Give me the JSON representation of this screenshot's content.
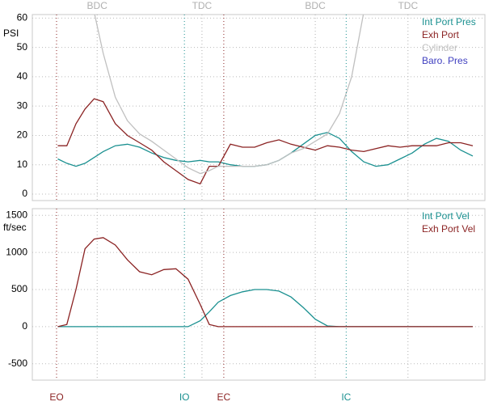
{
  "chart_data": [
    {
      "type": "line",
      "y_label": "PSI",
      "x": [
        115,
        130,
        145,
        160,
        175,
        190,
        210,
        230,
        250,
        270,
        290,
        310,
        330,
        350,
        365,
        380,
        400,
        420,
        440,
        460,
        480,
        500,
        520,
        540,
        560,
        580,
        600,
        620,
        640,
        660,
        680,
        700,
        720,
        740,
        760,
        780,
        800
      ],
      "xlim": [
        73,
        820
      ],
      "ylim": [
        -2.2,
        61.2
      ],
      "yticks": [
        0,
        10,
        20,
        30,
        40,
        50,
        60
      ],
      "grid": true,
      "markers": [
        {
          "x": 180,
          "label": "BDC",
          "color": "#b0b0b0"
        },
        {
          "x": 353,
          "label": "TDC",
          "color": "#b0b0b0"
        },
        {
          "x": 540,
          "label": "BDC",
          "color": "#b0b0b0"
        },
        {
          "x": 693,
          "label": "TDC",
          "color": "#b0b0b0"
        }
      ],
      "series": [
        {
          "name": "Int Port Pres",
          "color": "#1a9090",
          "values": [
            12,
            10.5,
            9.5,
            10.5,
            12.5,
            14.5,
            16.5,
            17,
            16,
            14,
            12.5,
            11.5,
            11,
            11.5,
            11,
            11,
            10,
            9.5,
            9.5,
            10,
            11.5,
            14,
            17,
            20,
            21,
            19,
            14.5,
            11,
            9.5,
            10,
            12,
            14,
            17,
            19,
            18,
            15,
            13
          ]
        },
        {
          "name": "Exh Port",
          "color": "#8b2323",
          "values": [
            16.5,
            16.5,
            24,
            29,
            32.5,
            31.5,
            24,
            20,
            17.5,
            15,
            11,
            8,
            5,
            3.5,
            9.5,
            9.5,
            17,
            16,
            16,
            17.5,
            18.5,
            17,
            16,
            15,
            16.5,
            16,
            15,
            14.5,
            15.5,
            16.5,
            16,
            16.5,
            16.5,
            16.5,
            17.5,
            17.5,
            16.5
          ]
        },
        {
          "name": "Cylinder",
          "color": "#c0c0c0",
          "values": [
            null,
            null,
            null,
            null,
            62,
            48,
            33,
            25,
            20.5,
            18,
            15,
            12,
            9,
            7,
            8,
            9.5,
            9.5,
            9.5,
            9.5,
            10,
            11.5,
            14,
            15.5,
            18,
            20.5,
            27.5,
            40,
            62,
            null,
            null,
            null,
            null,
            null,
            null,
            null,
            null,
            null
          ]
        },
        {
          "name": "Baro. Pres",
          "color": "#4040c0",
          "values": [
            null,
            null,
            null,
            null,
            null,
            null,
            null,
            null,
            null,
            null,
            null,
            null,
            null,
            null,
            null,
            null,
            null,
            null,
            null,
            null,
            null,
            null,
            null,
            null,
            null,
            null,
            null,
            null,
            null,
            null,
            null,
            null,
            null,
            null,
            null,
            null,
            null
          ]
        }
      ]
    },
    {
      "type": "line",
      "y_label": "ft/sec",
      "x": [
        115,
        130,
        145,
        160,
        175,
        190,
        210,
        230,
        250,
        270,
        290,
        310,
        330,
        350,
        365,
        380,
        400,
        420,
        440,
        460,
        480,
        500,
        520,
        540,
        560,
        580,
        600,
        620,
        640,
        660,
        680,
        700,
        720,
        740,
        760,
        780,
        800
      ],
      "xlim": [
        73,
        820
      ],
      "ylim": [
        -720,
        1590
      ],
      "yticks": [
        -500,
        0,
        500,
        1000,
        1500
      ],
      "grid": true,
      "markers": [
        {
          "x": 113,
          "label": "EO",
          "color": "#8b2323"
        },
        {
          "x": 324,
          "label": "IO",
          "color": "#1a9090"
        },
        {
          "x": 389,
          "label": "EC",
          "color": "#8b2323"
        },
        {
          "x": 591,
          "label": "IC",
          "color": "#1a9090"
        }
      ],
      "series": [
        {
          "name": "Int Port Vel",
          "color": "#1a9090",
          "values": [
            0,
            0,
            0,
            0,
            0,
            0,
            0,
            0,
            0,
            0,
            0,
            0,
            0,
            80,
            200,
            330,
            420,
            470,
            500,
            500,
            480,
            400,
            260,
            100,
            10,
            0,
            0,
            0,
            0,
            0,
            0,
            0,
            0,
            0,
            0,
            0,
            0
          ]
        },
        {
          "name": "Exh Port Vel",
          "color": "#8b2323",
          "values": [
            0,
            30,
            500,
            1050,
            1180,
            1200,
            1100,
            900,
            740,
            700,
            770,
            780,
            640,
            300,
            30,
            0,
            0,
            0,
            0,
            0,
            0,
            0,
            0,
            0,
            0,
            0,
            0,
            0,
            0,
            0,
            0,
            0,
            0,
            0,
            0,
            0,
            0
          ]
        }
      ]
    }
  ]
}
